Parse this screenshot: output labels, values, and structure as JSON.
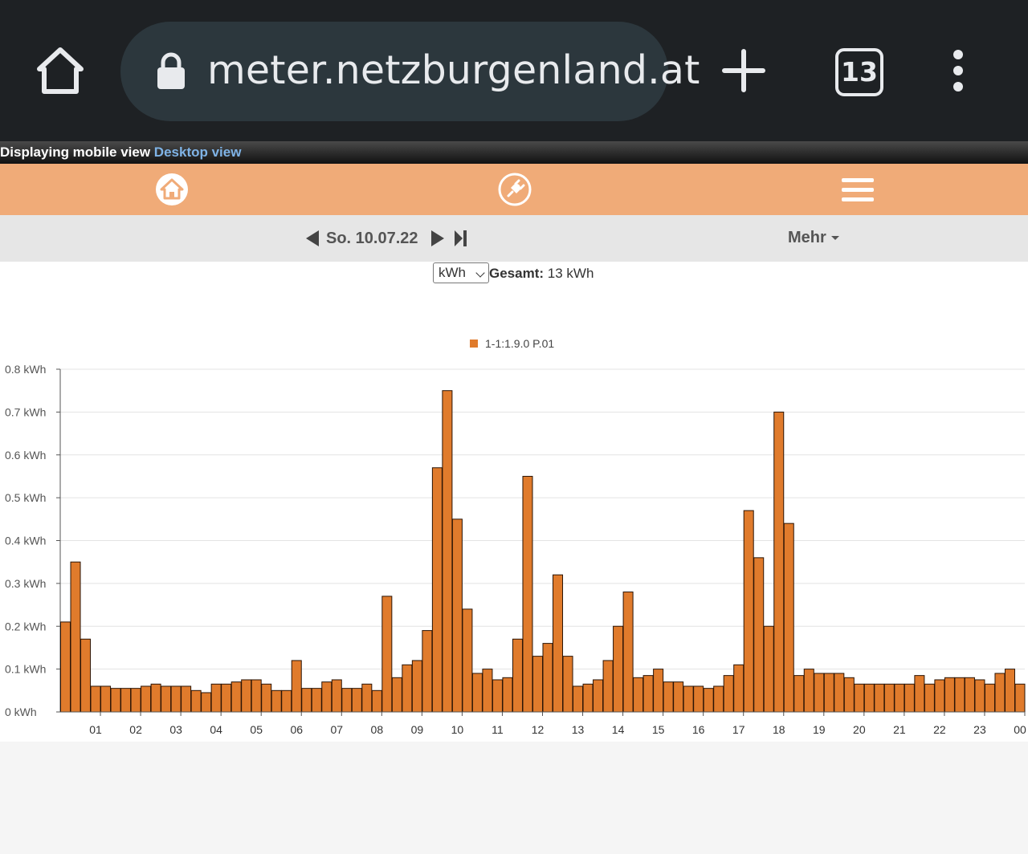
{
  "browser": {
    "url": "meter.netzburgenland.at",
    "tab_count": "13",
    "icons": [
      "home-icon",
      "lock-icon",
      "plus-icon",
      "tabs-icon",
      "more-vert-icon"
    ]
  },
  "mobile_bar": {
    "text": "Displaying mobile view",
    "link": "Desktop view"
  },
  "nav": {
    "icons": [
      "home-icon",
      "plug-icon",
      "hamburger-icon"
    ]
  },
  "datebar": {
    "date": "So. 10.07.22",
    "more": "Mehr"
  },
  "controls": {
    "unit": "kWh",
    "total_label": "Gesamt:",
    "total_value": "13 kWh"
  },
  "colors": {
    "bar": "#e07b2c",
    "nav": "#f0ab78",
    "browser": "#1e2124"
  },
  "chart_data": {
    "type": "bar",
    "legend": "1-1:1.9.0 P.01",
    "legend_position": "top-center",
    "grid": true,
    "ylim": [
      0,
      0.8
    ],
    "yticks": [
      "0 kWh",
      "0.1 kWh",
      "0.2 kWh",
      "0.3 kWh",
      "0.4 kWh",
      "0.5 kWh",
      "0.6 kWh",
      "0.7 kWh",
      "0.8 kWh"
    ],
    "xticks": [
      "01",
      "02",
      "03",
      "04",
      "05",
      "06",
      "07",
      "08",
      "09",
      "10",
      "11",
      "12",
      "13",
      "14",
      "15",
      "16",
      "17",
      "18",
      "19",
      "20",
      "21",
      "22",
      "23",
      "00"
    ],
    "interval": "15 min",
    "values": [
      0.21,
      0.35,
      0.17,
      0.06,
      0.06,
      0.055,
      0.055,
      0.055,
      0.06,
      0.065,
      0.06,
      0.06,
      0.06,
      0.05,
      0.045,
      0.065,
      0.065,
      0.07,
      0.075,
      0.075,
      0.065,
      0.05,
      0.05,
      0.12,
      0.055,
      0.055,
      0.07,
      0.075,
      0.055,
      0.055,
      0.065,
      0.05,
      0.27,
      0.08,
      0.11,
      0.12,
      0.19,
      0.57,
      0.75,
      0.45,
      0.24,
      0.09,
      0.1,
      0.075,
      0.08,
      0.17,
      0.55,
      0.13,
      0.16,
      0.32,
      0.13,
      0.06,
      0.065,
      0.075,
      0.12,
      0.2,
      0.28,
      0.08,
      0.085,
      0.1,
      0.07,
      0.07,
      0.06,
      0.06,
      0.055,
      0.06,
      0.085,
      0.11,
      0.47,
      0.36,
      0.2,
      0.7,
      0.44,
      0.085,
      0.1,
      0.09,
      0.09,
      0.09,
      0.08,
      0.065,
      0.065,
      0.065,
      0.065,
      0.065,
      0.065,
      0.085,
      0.065,
      0.075,
      0.08,
      0.08,
      0.08,
      0.075,
      0.065,
      0.09,
      0.1,
      0.065
    ]
  }
}
